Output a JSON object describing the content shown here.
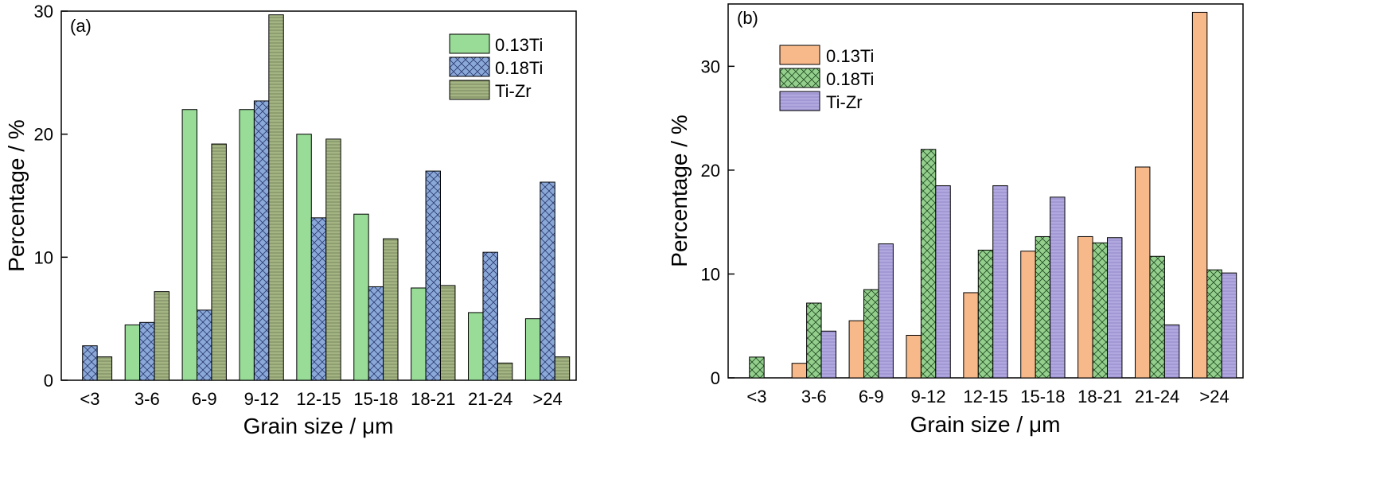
{
  "chart_data": [
    {
      "type": "bar",
      "panel_label": "(a)",
      "xlabel": "Grain size / μm",
      "ylabel": "Percentage / %",
      "ylim": [
        0,
        30
      ],
      "yticks": [
        "0",
        "10",
        "20",
        "30"
      ],
      "categories": [
        "<3",
        "3-6",
        "6-9",
        "9-12",
        "12-15",
        "15-18",
        "18-21",
        "21-24",
        ">24"
      ],
      "legend_position": "top-right",
      "grid": false,
      "series": [
        {
          "name": "0.13Ti",
          "color": "#98dc98",
          "pattern": "solid",
          "values": [
            0,
            4.5,
            22.0,
            22.0,
            20.0,
            13.5,
            7.5,
            5.5,
            5.0
          ]
        },
        {
          "name": "0.18Ti",
          "color": "#8aa8d8",
          "pattern": "crosshatch",
          "values": [
            2.8,
            4.7,
            5.7,
            22.7,
            13.2,
            7.6,
            17.0,
            10.4,
            16.1
          ]
        },
        {
          "name": "Ti-Zr",
          "color": "#a4b583",
          "pattern": "hlines",
          "values": [
            1.9,
            7.2,
            19.2,
            29.7,
            19.6,
            11.5,
            7.7,
            1.4,
            1.9
          ]
        }
      ]
    },
    {
      "type": "bar",
      "panel_label": "(b)",
      "xlabel": "Grain size / μm",
      "ylabel": "Percentage / %",
      "ylim": [
        0,
        36
      ],
      "yticks": [
        "0",
        "10",
        "20",
        "30"
      ],
      "categories": [
        "<3",
        "3-6",
        "6-9",
        "9-12",
        "12-15",
        "15-18",
        "18-21",
        "21-24",
        ">24"
      ],
      "legend_position": "top-left",
      "grid": false,
      "series": [
        {
          "name": "0.13Ti",
          "color": "#f8b98a",
          "pattern": "solid",
          "values": [
            0,
            1.4,
            5.5,
            4.1,
            8.2,
            12.2,
            13.6,
            20.3,
            35.2
          ]
        },
        {
          "name": "0.18Ti",
          "color": "#94cf8e",
          "pattern": "crosshatch",
          "values": [
            2.0,
            7.2,
            8.5,
            22.0,
            12.3,
            13.6,
            13.0,
            11.7,
            10.4
          ]
        },
        {
          "name": "Ti-Zr",
          "color": "#b2a8e0",
          "pattern": "hlines",
          "values": [
            0,
            4.5,
            12.9,
            18.5,
            18.5,
            17.4,
            13.5,
            5.1,
            10.1
          ]
        }
      ]
    }
  ]
}
